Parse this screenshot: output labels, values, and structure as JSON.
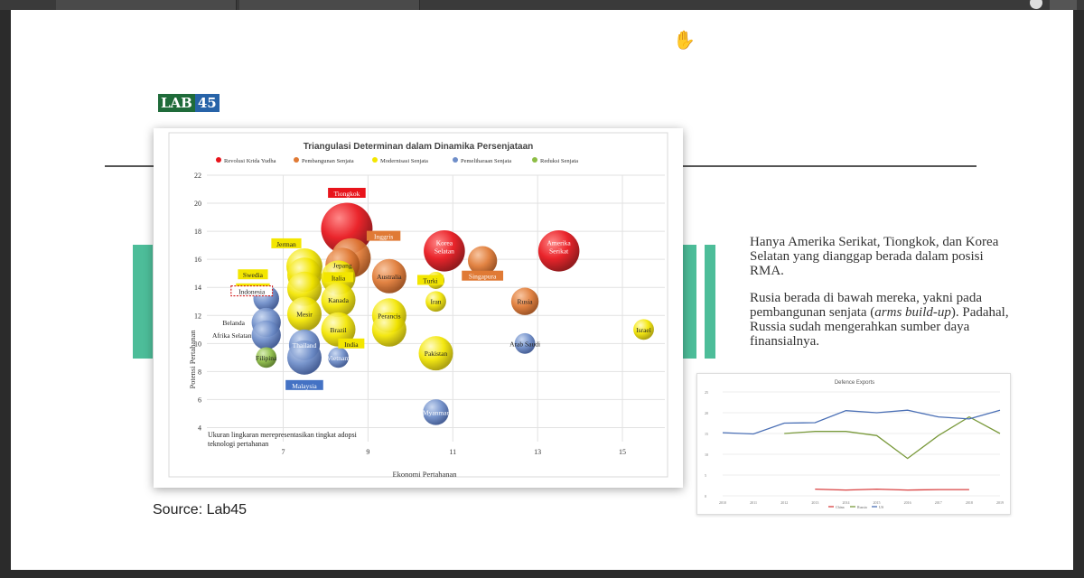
{
  "logo": {
    "part1": "LAB",
    "part2": "45"
  },
  "source": "Source: Lab45",
  "description": {
    "para1": "Hanya Amerika Serikat, Tiongkok, dan Korea Selatan yang dianggap berada dalam posisi RMA.",
    "para2_a": "Rusia berada di bawah mereka, yakni pada pembangunan senjata (",
    "para2_em": "arms build-up",
    "para2_b": "). Padahal, Russia sudah mengerahkan sumber daya finansialnya."
  },
  "colors": {
    "accent_green": "#4dbd99",
    "red": "#e8141b",
    "orange": "#e07a35",
    "yellow": "#f3e600",
    "blue": "#6f8ec9",
    "green": "#8dbd45"
  },
  "chart_data": [
    {
      "type": "scatter",
      "title": "Triangulasi Determinan dalam Dinamika Persenjataan",
      "xlabel": "Ekonomi Pertahanan",
      "ylabel": "Potensi Pertahanan",
      "xlim": [
        5.2,
        16.0
      ],
      "ylim": [
        3.0,
        22.0
      ],
      "xticks": [
        "7",
        "9",
        "11",
        "13",
        "15"
      ],
      "yticks": [
        "4",
        "6",
        "8",
        "10",
        "12",
        "14",
        "16",
        "18",
        "20",
        "22"
      ],
      "grid": true,
      "legend_position": "top",
      "legend": [
        {
          "name": "Revolusi Krida Yudha",
          "color": "red"
        },
        {
          "name": "Pembangunan Senjata",
          "color": "orange"
        },
        {
          "name": "Modernisasi Senjata",
          "color": "yellow"
        },
        {
          "name": "Pemeliharaan Senjata",
          "color": "blue"
        },
        {
          "name": "Reduksi Senjata",
          "color": "green"
        }
      ],
      "annotation": "Ukuran lingkaran merepresentasikan tingkat adopsi teknologi pertahanan",
      "points": [
        {
          "label": "Tiongkok",
          "x": 8.5,
          "y": 18.2,
          "size": 3.0,
          "color": "red",
          "tag": "red"
        },
        {
          "label": "Korea Selatan",
          "x": 10.8,
          "y": 16.6,
          "size": 2.4,
          "color": "red",
          "tag": ""
        },
        {
          "label": "Amerika Serikat",
          "x": 13.5,
          "y": 16.6,
          "size": 2.4,
          "color": "red",
          "tag": ""
        },
        {
          "label": "Inggris",
          "x": 8.6,
          "y": 16.1,
          "size": 2.3,
          "color": "orange",
          "tag": "orange"
        },
        {
          "label": "Jepang",
          "x": 8.4,
          "y": 15.6,
          "size": 2.0,
          "color": "orange",
          "tag": ""
        },
        {
          "label": "Australia",
          "x": 9.5,
          "y": 14.8,
          "size": 2.0,
          "color": "orange",
          "tag": ""
        },
        {
          "label": "Singapura",
          "x": 11.7,
          "y": 15.9,
          "size": 1.7,
          "color": "orange",
          "tag": "orange"
        },
        {
          "label": "Rusia",
          "x": 12.7,
          "y": 13.0,
          "size": 1.6,
          "color": "orange",
          "tag": ""
        },
        {
          "label": "Jerman",
          "x": 7.5,
          "y": 15.5,
          "size": 2.1,
          "color": "yellow",
          "tag": "yellow"
        },
        {
          "label": "Swedia",
          "x": 7.5,
          "y": 14.9,
          "size": 2.0,
          "color": "yellow",
          "tag": "yellow"
        },
        {
          "label": "Spanyol",
          "x": 7.5,
          "y": 13.9,
          "size": 2.0,
          "color": "yellow",
          "tag": "yellow"
        },
        {
          "label": "Italia",
          "x": 8.3,
          "y": 14.7,
          "size": 2.0,
          "color": "yellow",
          "tag": "yellow"
        },
        {
          "label": "Kanada",
          "x": 8.3,
          "y": 13.1,
          "size": 2.0,
          "color": "yellow",
          "tag": ""
        },
        {
          "label": "Mesir",
          "x": 7.5,
          "y": 12.1,
          "size": 2.0,
          "color": "yellow",
          "tag": ""
        },
        {
          "label": "Brazil",
          "x": 8.3,
          "y": 11.0,
          "size": 2.0,
          "color": "yellow",
          "tag": ""
        },
        {
          "label": "Perancis",
          "x": 9.5,
          "y": 12.0,
          "size": 2.0,
          "color": "yellow",
          "tag": ""
        },
        {
          "label": "India",
          "x": 9.5,
          "y": 11.0,
          "size": 2.0,
          "color": "yellow",
          "tag": "yellow"
        },
        {
          "label": "Turki",
          "x": 10.6,
          "y": 14.5,
          "size": 1.0,
          "color": "yellow",
          "tag": "yellow"
        },
        {
          "label": "Iran",
          "x": 10.6,
          "y": 13.0,
          "size": 1.2,
          "color": "yellow",
          "tag": ""
        },
        {
          "label": "Pakistan",
          "x": 10.6,
          "y": 9.3,
          "size": 2.0,
          "color": "yellow",
          "tag": ""
        },
        {
          "label": "Israel",
          "x": 15.5,
          "y": 11.0,
          "size": 1.2,
          "color": "yellow",
          "tag": ""
        },
        {
          "label": "Indonesia",
          "x": 6.6,
          "y": 13.2,
          "size": 1.5,
          "color": "blue",
          "tag": "dashed"
        },
        {
          "label": "Belanda",
          "x": 6.6,
          "y": 11.5,
          "size": 1.7,
          "color": "blue",
          "tag": ""
        },
        {
          "label": "Afrika Selatan",
          "x": 6.6,
          "y": 10.6,
          "size": 1.7,
          "color": "blue",
          "tag": ""
        },
        {
          "label": "Thailand",
          "x": 7.5,
          "y": 9.9,
          "size": 1.8,
          "color": "blue",
          "tag": ""
        },
        {
          "label": "Malaysia",
          "x": 7.5,
          "y": 9.0,
          "size": 2.0,
          "color": "blue",
          "tag": "blue"
        },
        {
          "label": "Vietnam",
          "x": 8.3,
          "y": 9.0,
          "size": 1.2,
          "color": "blue",
          "tag": ""
        },
        {
          "label": "Arab Saudi",
          "x": 12.7,
          "y": 10.0,
          "size": 1.2,
          "color": "blue",
          "tag": ""
        },
        {
          "label": "Myanmar",
          "x": 10.6,
          "y": 5.1,
          "size": 1.5,
          "color": "blue",
          "tag": ""
        },
        {
          "label": "Filipina",
          "x": 6.6,
          "y": 9.0,
          "size": 1.2,
          "color": "green",
          "tag": ""
        }
      ]
    },
    {
      "type": "line",
      "title": "Defence Exports",
      "x": [
        "2010",
        "2011",
        "2012",
        "2013",
        "2014",
        "2015",
        "2016",
        "2017",
        "2018",
        "2019"
      ],
      "yticks": [
        "0",
        "5",
        "10",
        "15",
        "20",
        "25"
      ],
      "ylim": [
        0,
        25
      ],
      "series": [
        {
          "name": "China",
          "color": "#d94040",
          "values": [
            null,
            null,
            null,
            1.6,
            1.4,
            1.6,
            1.4,
            1.5,
            1.5,
            null
          ]
        },
        {
          "name": "Russia",
          "color": "#7a9a3c",
          "values": [
            null,
            null,
            15.0,
            15.5,
            15.5,
            14.5,
            9.0,
            14.5,
            19.0,
            15.0
          ]
        },
        {
          "name": "US",
          "color": "#4a6fb5",
          "values": [
            15.2,
            14.9,
            17.5,
            17.6,
            20.5,
            20.0,
            20.6,
            19.0,
            18.5,
            20.6
          ]
        }
      ]
    }
  ]
}
